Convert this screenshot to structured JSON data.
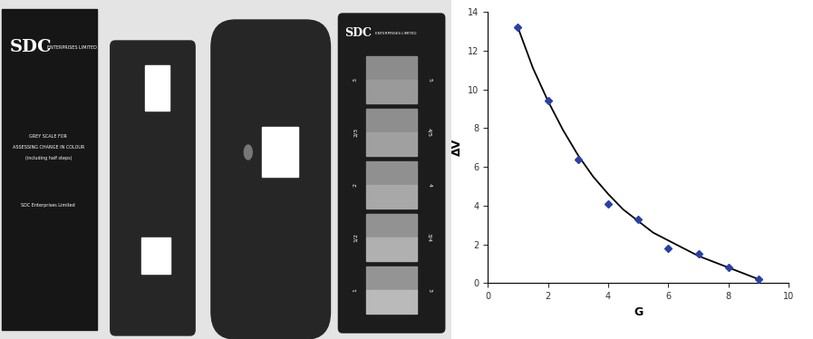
{
  "photo": {
    "sleeve": {
      "logo": "SDC",
      "company": "ENTERPRISES LIMITED",
      "lines": [
        "GREY SCALE FOR",
        "ASSESSING CHANGE IN COLOUR",
        "(including half steps)",
        "SDC Enterprises Limited"
      ]
    },
    "grey_scale_card": {
      "logo": "SDC",
      "company": "ENTERPRISES LIMITED",
      "left_labels": [
        "3",
        "2/3",
        "2",
        "1/2",
        "1"
      ],
      "right_labels": [
        "5",
        "4/5",
        "4",
        "3/4",
        "3"
      ]
    }
  },
  "chart_data": {
    "type": "scatter",
    "xlabel": "G",
    "ylabel": "ΔV",
    "series": [
      {
        "type": "scatter",
        "color": "#2b3fa8",
        "marker": "diamond",
        "x": [
          1,
          2,
          3,
          4,
          5,
          6,
          7,
          8,
          9
        ],
        "values": [
          13.2,
          9.4,
          6.4,
          4.1,
          3.3,
          1.8,
          1.5,
          0.8,
          0.2
        ]
      },
      {
        "type": "line",
        "color": "#000000",
        "line_style": "solid",
        "x": [
          1,
          1.5,
          2,
          2.5,
          3,
          3.5,
          4,
          4.5,
          5,
          5.5,
          6,
          6.5,
          7,
          7.5,
          8,
          8.5,
          9
        ],
        "values": [
          13.2,
          11.1,
          9.4,
          7.9,
          6.6,
          5.5,
          4.6,
          3.8,
          3.2,
          2.6,
          2.2,
          1.8,
          1.4,
          1.1,
          0.8,
          0.5,
          0.2
        ]
      }
    ],
    "xlim": [
      0,
      10
    ],
    "xticks": [
      0,
      2,
      4,
      6,
      8,
      10
    ],
    "ylim": [
      0,
      14
    ],
    "yticks": [
      0,
      2,
      4,
      6,
      8,
      10,
      12,
      14
    ],
    "grid": false
  }
}
